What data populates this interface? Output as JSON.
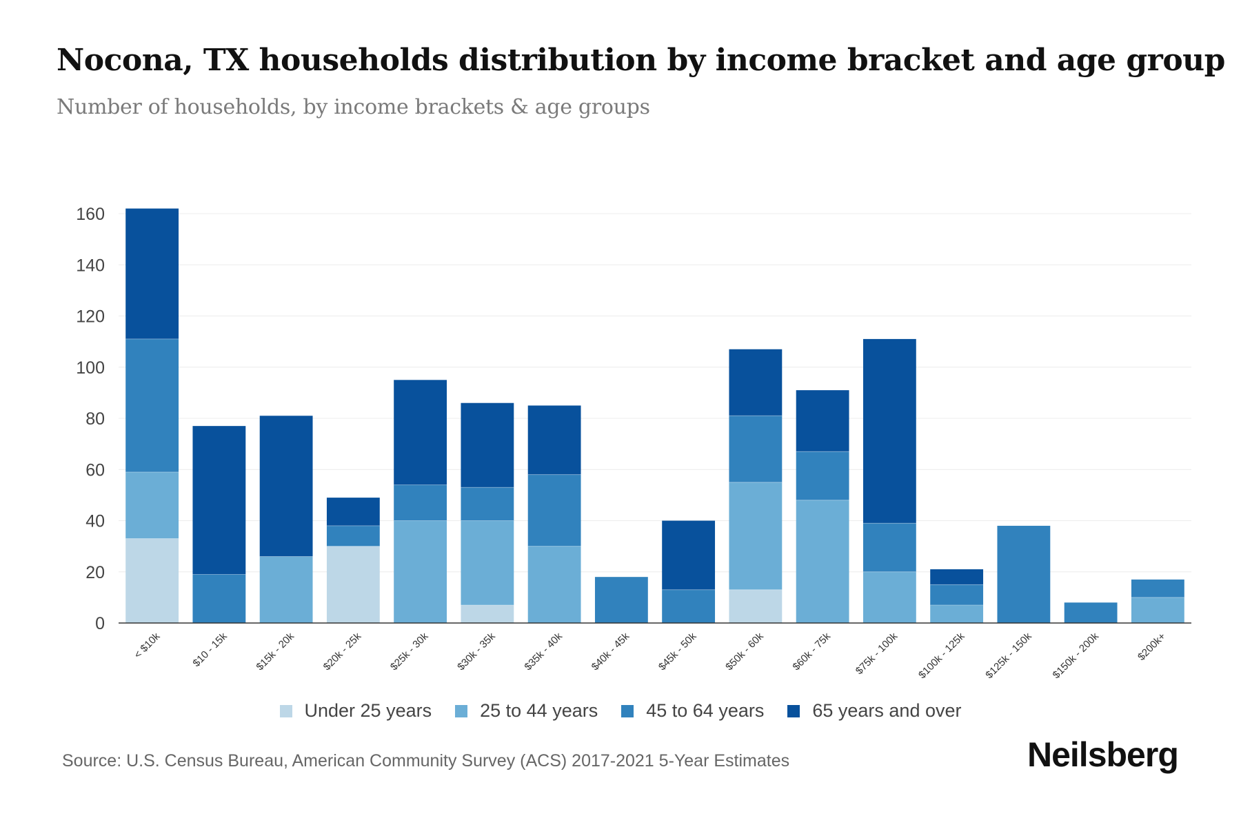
{
  "title": "Nocona, TX households distribution by income bracket and age group",
  "subtitle": "Number of households, by income brackets & age groups",
  "source": "Source: U.S. Census Bureau, American Community Survey (ACS) 2017-2021 5-Year Estimates",
  "brand": "Neilsberg",
  "chart_data": {
    "type": "bar",
    "stacked": true,
    "title": "Nocona, TX households distribution by income bracket and age group",
    "xlabel": "",
    "ylabel": "",
    "ylim": [
      0,
      160
    ],
    "yticks": [
      0,
      20,
      40,
      60,
      80,
      100,
      120,
      140,
      160
    ],
    "grid": true,
    "legend": "bottom-center",
    "categories": [
      "< $10k",
      "$10 - 15k",
      "$15k - 20k",
      "$20k - 25k",
      "$25k - 30k",
      "$30k - 35k",
      "$35k - 40k",
      "$40k - 45k",
      "$45k - 50k",
      "$50k - 60k",
      "$60k - 75k",
      "$75k - 100k",
      "$100k - 125k",
      "$125k - 150k",
      "$150k - 200k",
      "$200k+"
    ],
    "series": [
      {
        "name": "Under 25 years",
        "color": "#bdd7e7",
        "values": [
          33,
          0,
          0,
          30,
          0,
          7,
          0,
          0,
          0,
          13,
          0,
          0,
          0,
          0,
          0,
          0
        ]
      },
      {
        "name": "25 to 44 years",
        "color": "#6baed6",
        "values": [
          26,
          0,
          26,
          0,
          40,
          33,
          30,
          0,
          0,
          42,
          48,
          20,
          7,
          0,
          0,
          10
        ]
      },
      {
        "name": "45 to 64 years",
        "color": "#3182bd",
        "values": [
          52,
          19,
          0,
          8,
          14,
          13,
          28,
          18,
          13,
          26,
          19,
          19,
          8,
          38,
          8,
          7
        ]
      },
      {
        "name": "65 years and over",
        "color": "#08519c",
        "values": [
          51,
          58,
          55,
          11,
          41,
          33,
          27,
          0,
          27,
          26,
          24,
          72,
          6,
          0,
          0,
          0
        ]
      }
    ]
  }
}
